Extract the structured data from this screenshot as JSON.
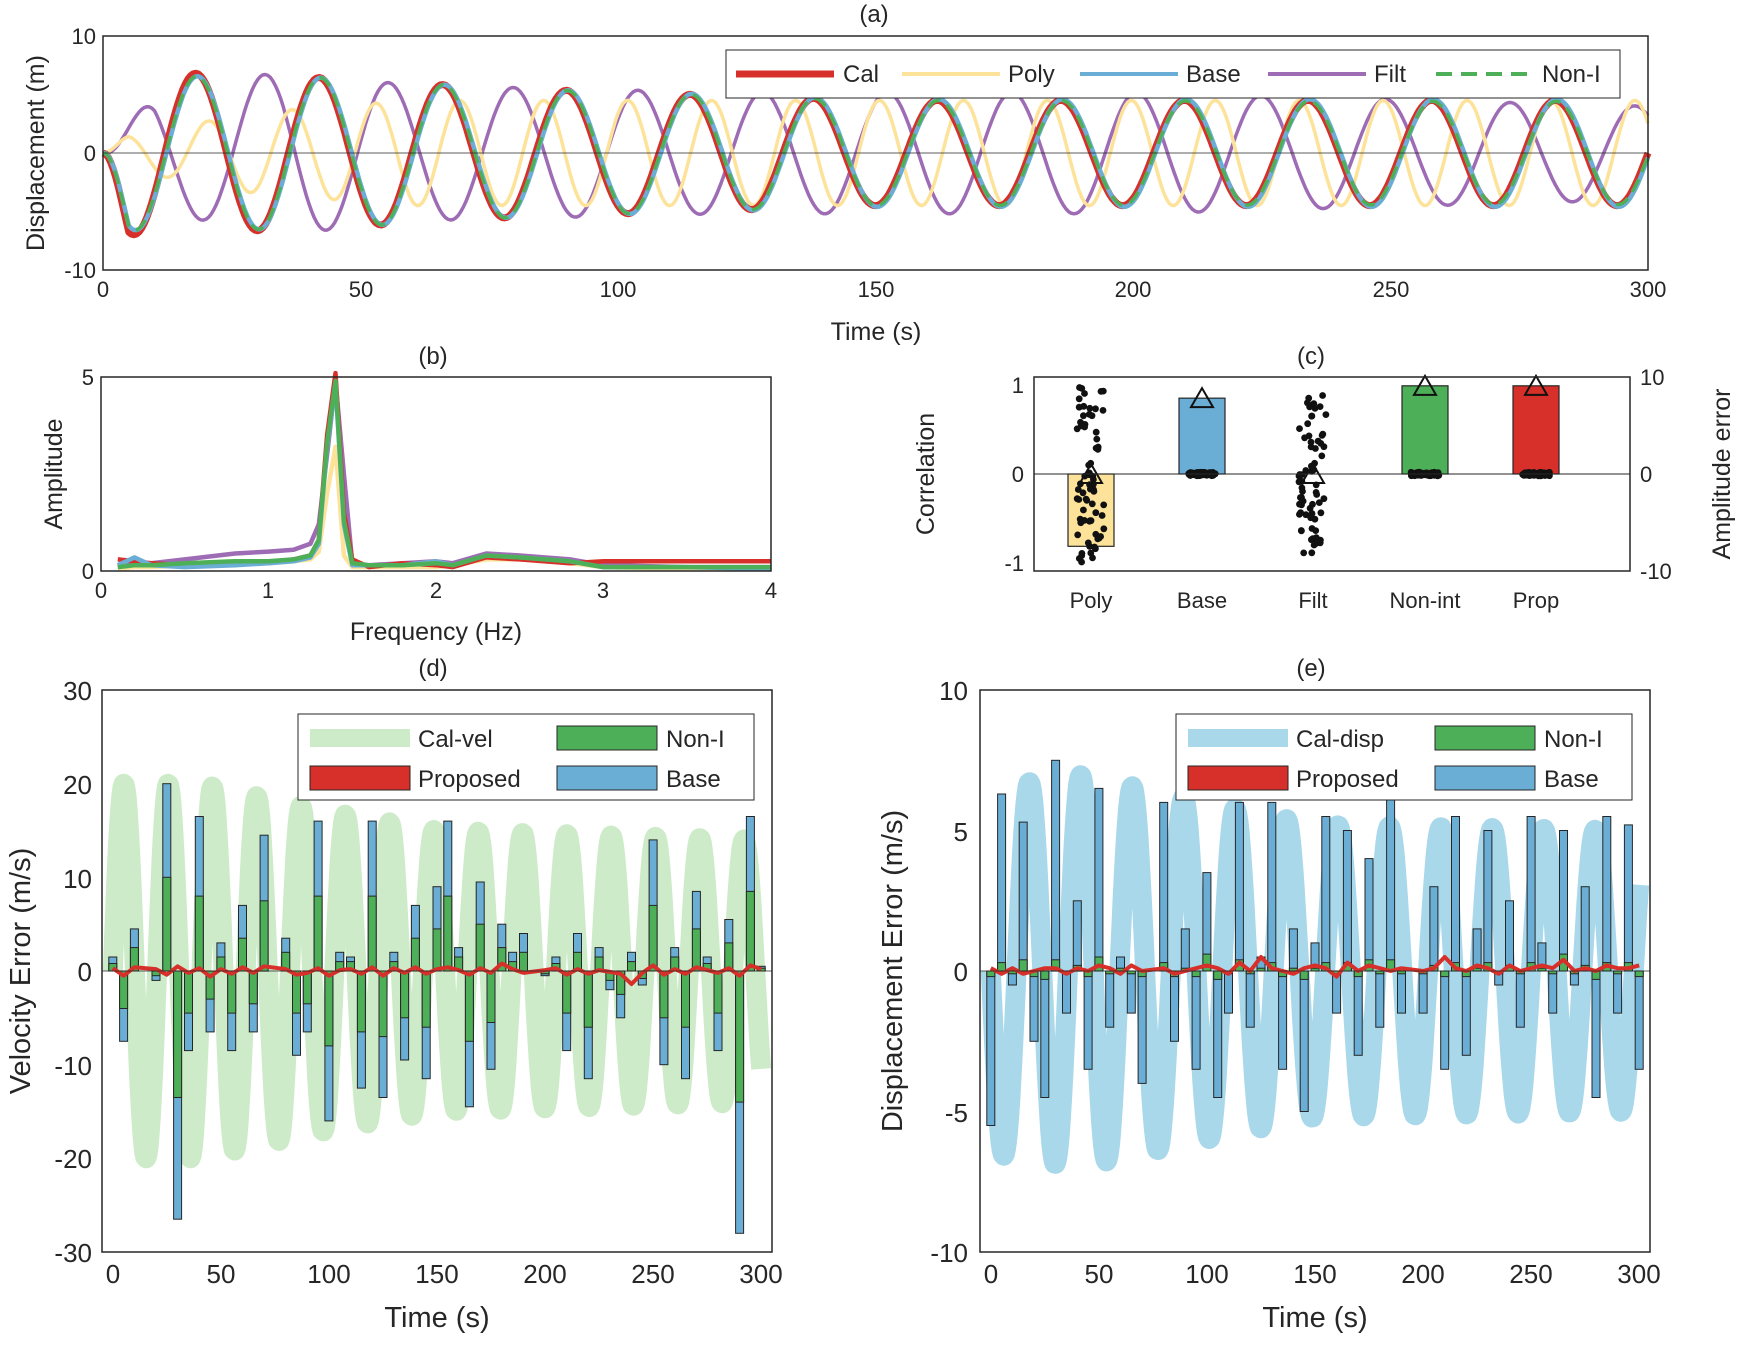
{
  "colors": {
    "cal": "#d7302a",
    "poly": "#fde29a",
    "base": "#6aaed6",
    "filt": "#9e6bb5",
    "nonint": "#4daf58",
    "proposed": "#d7302a",
    "calvel": "#cdebc9",
    "caldisp": "#a8d8ea",
    "axis": "#262626"
  },
  "chart_data": [
    {
      "id": "a",
      "type": "line",
      "title": "(a)",
      "xlabel": "Time (s)",
      "ylabel": "Displacement (m)",
      "xlim": [
        0,
        300
      ],
      "ylim": [
        -10,
        10
      ],
      "xticks": [
        "0",
        "50",
        "100",
        "150",
        "200",
        "250",
        "300"
      ],
      "yticks": [
        "10",
        "0",
        "-10"
      ],
      "legend_location": "top-right",
      "legend": [
        "Cal",
        "Poly",
        "Base",
        "Filt",
        "Non-I"
      ],
      "series": [
        {
          "name": "Filt",
          "color_key": "filt",
          "period_s": 24.2,
          "phase_deg": -15,
          "amplitude_envelope": [
            {
              "t": 0,
              "a": 0
            },
            {
              "t": 10,
              "a": 5
            },
            {
              "t": 35,
              "a": 7
            },
            {
              "t": 60,
              "a": 5.8
            },
            {
              "t": 120,
              "a": 5.2
            },
            {
              "t": 200,
              "a": 5.2
            },
            {
              "t": 300,
              "a": 4
            }
          ]
        },
        {
          "name": "Poly",
          "color_key": "poly",
          "period_s": 16.3,
          "phase_deg": 0,
          "amplitude_envelope": [
            {
              "t": 0,
              "a": 0
            },
            {
              "t": 5,
              "a": 1.5
            },
            {
              "t": 30,
              "a": 3.5
            },
            {
              "t": 60,
              "a": 4.5
            },
            {
              "t": 120,
              "a": 4.5
            },
            {
              "t": 300,
              "a": 4.5
            }
          ]
        },
        {
          "name": "Cal",
          "color_key": "cal",
          "period_s": 24.0,
          "phase_deg": 180,
          "amplitude_envelope": [
            {
              "t": 0,
              "a": 0
            },
            {
              "t": 5,
              "a": 7
            },
            {
              "t": 40,
              "a": 6.5
            },
            {
              "t": 80,
              "a": 5.5
            },
            {
              "t": 150,
              "a": 4.5
            },
            {
              "t": 300,
              "a": 4.5
            }
          ]
        },
        {
          "name": "Base",
          "color_key": "base",
          "period_s": 24.0,
          "phase_deg": 175,
          "amplitude_envelope": [
            {
              "t": 0,
              "a": 0
            },
            {
              "t": 5,
              "a": 6.6
            },
            {
              "t": 40,
              "a": 6.5
            },
            {
              "t": 80,
              "a": 5.5
            },
            {
              "t": 150,
              "a": 4.6
            },
            {
              "t": 300,
              "a": 4.6
            }
          ]
        },
        {
          "name": "Non-I",
          "color_key": "nonint",
          "period_s": 24.0,
          "phase_deg": 177,
          "amplitude_envelope": [
            {
              "t": 0,
              "a": 0
            },
            {
              "t": 5,
              "a": 6.6
            },
            {
              "t": 40,
              "a": 6.5
            },
            {
              "t": 80,
              "a": 5.5
            },
            {
              "t": 150,
              "a": 4.5
            },
            {
              "t": 300,
              "a": 4.4
            }
          ]
        }
      ]
    },
    {
      "id": "b",
      "type": "line",
      "title": "(b)",
      "xlabel": "Frequency (Hz)",
      "ylabel": "Amplitude",
      "xlim": [
        0,
        4
      ],
      "ylim": [
        0,
        5
      ],
      "xticks": [
        "0",
        "1",
        "2",
        "3",
        "4"
      ],
      "yticks": [
        "5",
        "0"
      ],
      "x": [
        0.1,
        0.2,
        0.3,
        0.5,
        0.8,
        1.0,
        1.15,
        1.25,
        1.3,
        1.35,
        1.4,
        1.45,
        1.5,
        1.6,
        1.8,
        2.0,
        2.1,
        2.3,
        2.5,
        2.8,
        3.0,
        3.5,
        4.0
      ],
      "series": [
        {
          "name": "Filt",
          "color_key": "filt",
          "values": [
            0.1,
            0.2,
            0.2,
            0.3,
            0.45,
            0.5,
            0.55,
            0.7,
            1.2,
            3.0,
            4.9,
            2.5,
            0.2,
            0.15,
            0.2,
            0.25,
            0.2,
            0.45,
            0.4,
            0.3,
            0.15,
            0.1,
            0.1
          ]
        },
        {
          "name": "Poly",
          "color_key": "poly",
          "values": [
            0.05,
            0.1,
            0.1,
            0.15,
            0.2,
            0.2,
            0.25,
            0.3,
            0.5,
            2.0,
            3.2,
            0.4,
            0.1,
            0.1,
            0.1,
            0.1,
            0.15,
            0.3,
            0.3,
            0.2,
            0.1,
            0.05,
            0.05
          ]
        },
        {
          "name": "Cal",
          "color_key": "cal",
          "values": [
            0.3,
            0.25,
            0.2,
            0.15,
            0.2,
            0.2,
            0.3,
            0.4,
            0.8,
            3.5,
            5.1,
            1.5,
            0.3,
            0.1,
            0.2,
            0.15,
            0.1,
            0.35,
            0.3,
            0.2,
            0.25,
            0.25,
            0.25
          ]
        },
        {
          "name": "Base",
          "color_key": "base",
          "values": [
            0.15,
            0.35,
            0.15,
            0.1,
            0.15,
            0.2,
            0.25,
            0.35,
            0.7,
            3.2,
            4.8,
            1.2,
            0.15,
            0.15,
            0.15,
            0.25,
            0.15,
            0.4,
            0.35,
            0.25,
            0.1,
            0.1,
            0.05
          ]
        },
        {
          "name": "Non-I",
          "color_key": "nonint",
          "values": [
            0.1,
            0.15,
            0.15,
            0.2,
            0.25,
            0.25,
            0.3,
            0.4,
            0.8,
            3.3,
            4.9,
            1.3,
            0.2,
            0.15,
            0.15,
            0.2,
            0.15,
            0.4,
            0.35,
            0.25,
            0.1,
            0.1,
            0.1
          ]
        }
      ]
    },
    {
      "id": "c",
      "type": "bar",
      "title": "(c)",
      "ylabel": "Correlation",
      "ylabel_right": "Amplitude error",
      "ylim": [
        -1.1,
        1.1
      ],
      "ylim_right": [
        -10,
        10
      ],
      "yticks": [
        "1",
        "0",
        "-1"
      ],
      "yticks_right": [
        "10",
        "0",
        "-10"
      ],
      "categories": [
        "Poly",
        "Base",
        "Filt",
        "Non-int",
        "Prop"
      ],
      "category_color_keys": [
        "poly",
        "base",
        "filt",
        "nonint",
        "cal"
      ],
      "values": [
        -0.82,
        0.86,
        0.0,
        1.0,
        1.0
      ],
      "triangle_values": [
        0.0,
        0.86,
        0.0,
        1.0,
        1.0
      ],
      "scatter_spread": [
        1.0,
        0.04,
        0.9,
        0.0,
        0.0
      ]
    },
    {
      "id": "d",
      "type": "bar",
      "title": "(d)",
      "xlabel": "Time (s)",
      "ylabel": "Velocity Error (m/s)",
      "xlim": [
        -5,
        305
      ],
      "ylim": [
        -30,
        30
      ],
      "xticks": [
        "0",
        "50",
        "100",
        "150",
        "200",
        "250",
        "300"
      ],
      "yticks": [
        "30",
        "20",
        "10",
        "0",
        "-10",
        "-20",
        "-30"
      ],
      "legend_location": "top-right",
      "legend": [
        "Cal-vel",
        "Non-I",
        "Proposed",
        "Base"
      ],
      "times": [
        0,
        5,
        10,
        20,
        25,
        30,
        35,
        40,
        45,
        50,
        55,
        60,
        65,
        70,
        80,
        85,
        90,
        95,
        100,
        105,
        110,
        115,
        120,
        125,
        130,
        135,
        140,
        145,
        150,
        155,
        160,
        165,
        170,
        175,
        180,
        185,
        190,
        200,
        205,
        210,
        215,
        220,
        225,
        230,
        235,
        240,
        245,
        250,
        255,
        260,
        265,
        270,
        275,
        280,
        285,
        290,
        295,
        300
      ],
      "base": [
        1.5,
        -7.5,
        4.5,
        -1.0,
        20.0,
        -26.5,
        -8.5,
        16.5,
        -6.5,
        3.0,
        -8.5,
        7.0,
        -6.5,
        14.5,
        3.5,
        -9.0,
        -6.5,
        16.0,
        -16.0,
        2.0,
        1.5,
        -12.5,
        16.0,
        -13.5,
        2.0,
        -9.5,
        7.0,
        -11.5,
        9.0,
        16.0,
        2.5,
        -14.5,
        9.5,
        -10.5,
        5.0,
        2.0,
        4.0,
        -0.5,
        1.5,
        -8.5,
        4.0,
        -11.5,
        2.5,
        -2.0,
        -5.0,
        2.0,
        -1.5,
        14.0,
        -10.0,
        2.5,
        -11.5,
        8.5,
        1.5,
        -8.5,
        5.5,
        -28.0,
        16.5,
        0.5
      ],
      "nonint": [
        0.8,
        -4.0,
        2.5,
        -0.5,
        10.0,
        -13.5,
        -4.5,
        8.0,
        -3.0,
        1.5,
        -4.5,
        3.5,
        -3.5,
        7.5,
        2.0,
        -4.5,
        -3.5,
        8.0,
        -8.0,
        1.0,
        1.0,
        -6.5,
        8.0,
        -7.0,
        1.0,
        -5.0,
        3.5,
        -6.0,
        4.5,
        8.0,
        1.5,
        -7.5,
        5.0,
        -5.5,
        2.5,
        1.0,
        2.0,
        -0.3,
        0.8,
        -4.5,
        2.0,
        -6.0,
        1.5,
        -1.0,
        -2.5,
        1.0,
        -0.8,
        7.0,
        -5.0,
        1.5,
        -6.0,
        4.5,
        0.8,
        -4.5,
        3.0,
        -14.0,
        8.5,
        0.3
      ],
      "proposed": [
        0.3,
        -0.5,
        0.4,
        0.2,
        -0.4,
        0.5,
        -0.2,
        0.3,
        -0.6,
        0.2,
        -0.3,
        0.4,
        -0.2,
        0.5,
        0.2,
        -0.4,
        -0.2,
        0.3,
        -0.5,
        0.1,
        0.2,
        -0.3,
        0.4,
        -0.5,
        0.3,
        -0.2,
        0.4,
        -0.3,
        0.2,
        0.4,
        0.1,
        -0.4,
        0.3,
        -0.2,
        0.8,
        0.2,
        -0.2,
        0.1,
        0.3,
        -0.4,
        0.2,
        -0.3,
        0.1,
        -0.1,
        -0.3,
        -1.4,
        -0.2,
        0.6,
        -0.4,
        0.2,
        -0.3,
        0.4,
        0.1,
        -0.2,
        0.3,
        -0.5,
        0.6,
        0.2
      ],
      "cal_curve": {
        "period_s": 20.5,
        "phase_deg": 0,
        "amplitude_envelope": [
          {
            "t": 0,
            "a": 20
          },
          {
            "t": 40,
            "a": 20
          },
          {
            "t": 100,
            "a": 17
          },
          {
            "t": 150,
            "a": 15
          },
          {
            "t": 300,
            "a": 14
          }
        ]
      }
    },
    {
      "id": "e",
      "type": "bar",
      "title": "(e)",
      "xlabel": "Time (s)",
      "ylabel": "Displacement Error (m/s)",
      "xlim": [
        -5,
        305
      ],
      "ylim": [
        -10,
        10
      ],
      "xticks": [
        "0",
        "50",
        "100",
        "150",
        "200",
        "250",
        "300"
      ],
      "yticks": [
        "10",
        "5",
        "0",
        "-5",
        "-10"
      ],
      "legend_location": "top-right",
      "legend": [
        "Cal-disp",
        "Non-I",
        "Proposed",
        "Base"
      ],
      "times": [
        0,
        5,
        10,
        15,
        20,
        25,
        30,
        35,
        40,
        45,
        50,
        55,
        60,
        65,
        70,
        80,
        85,
        90,
        95,
        100,
        105,
        110,
        115,
        120,
        125,
        130,
        135,
        140,
        145,
        150,
        155,
        160,
        165,
        170,
        175,
        180,
        185,
        190,
        200,
        205,
        210,
        215,
        220,
        225,
        230,
        235,
        240,
        245,
        250,
        255,
        260,
        265,
        270,
        275,
        280,
        285,
        290,
        295,
        300
      ],
      "base": [
        -5.5,
        6.3,
        -0.5,
        5.3,
        -2.5,
        -4.5,
        7.5,
        -1.5,
        2.5,
        -3.5,
        6.5,
        -2.0,
        0.5,
        -1.5,
        -4.0,
        6.0,
        -2.5,
        1.5,
        -3.5,
        3.5,
        -4.5,
        -1.5,
        6.0,
        -2.0,
        0.5,
        6.0,
        -3.5,
        1.5,
        -5.0,
        1.0,
        5.5,
        -1.5,
        5.0,
        -3.0,
        4.0,
        -2.0,
        6.5,
        -1.5,
        -1.5,
        3.0,
        -3.5,
        5.5,
        -3.0,
        1.5,
        5.0,
        -0.5,
        2.5,
        -2.0,
        5.5,
        1.0,
        -1.5,
        5.0,
        -0.5,
        3.0,
        -4.5,
        5.5,
        -1.5,
        5.2,
        -3.5
      ],
      "nonint": [
        -0.2,
        0.3,
        -0.1,
        0.4,
        -0.2,
        -0.3,
        0.4,
        -0.1,
        0.2,
        -0.2,
        0.5,
        -0.1,
        0.1,
        -0.1,
        -0.2,
        0.3,
        -0.2,
        0.1,
        -0.2,
        0.6,
        -0.3,
        -0.1,
        0.4,
        -0.1,
        0.1,
        0.3,
        -0.2,
        0.1,
        -0.3,
        0.1,
        0.3,
        -0.1,
        0.3,
        -0.2,
        0.4,
        -0.1,
        0.4,
        -0.1,
        -0.1,
        0.2,
        -0.2,
        0.3,
        -0.2,
        0.1,
        0.3,
        -0.1,
        0.2,
        -0.1,
        0.3,
        0.1,
        -0.1,
        0.6,
        -0.1,
        0.2,
        -0.3,
        0.3,
        -0.1,
        0.3,
        -0.2
      ],
      "proposed": [
        0.1,
        -0.1,
        0.1,
        -0.1,
        0.0,
        0.1,
        0.1,
        -0.1,
        0.1,
        0.0,
        0.2,
        0.1,
        -0.1,
        0.2,
        0.0,
        0.1,
        -0.1,
        0.0,
        0.1,
        0.2,
        0.1,
        -0.1,
        0.3,
        0.0,
        0.5,
        0.1,
        0.0,
        -0.1,
        0.1,
        0.2,
        0.1,
        -0.2,
        0.3,
        0.0,
        0.2,
        0.1,
        0.0,
        0.1,
        0.0,
        0.1,
        0.5,
        0.1,
        0.0,
        0.2,
        0.1,
        -0.1,
        0.2,
        0.0,
        0.1,
        0.2,
        0.1,
        0.4,
        0.0,
        0.1,
        0.0,
        0.2,
        0.1,
        0.1,
        0.2
      ],
      "cal_curve": {
        "period_s": 23.8,
        "phase_deg": 180,
        "amplitude_envelope": [
          {
            "t": 0,
            "a": 6.5
          },
          {
            "t": 40,
            "a": 7
          },
          {
            "t": 100,
            "a": 6
          },
          {
            "t": 150,
            "a": 5.2
          },
          {
            "t": 300,
            "a": 5
          }
        ]
      }
    }
  ]
}
